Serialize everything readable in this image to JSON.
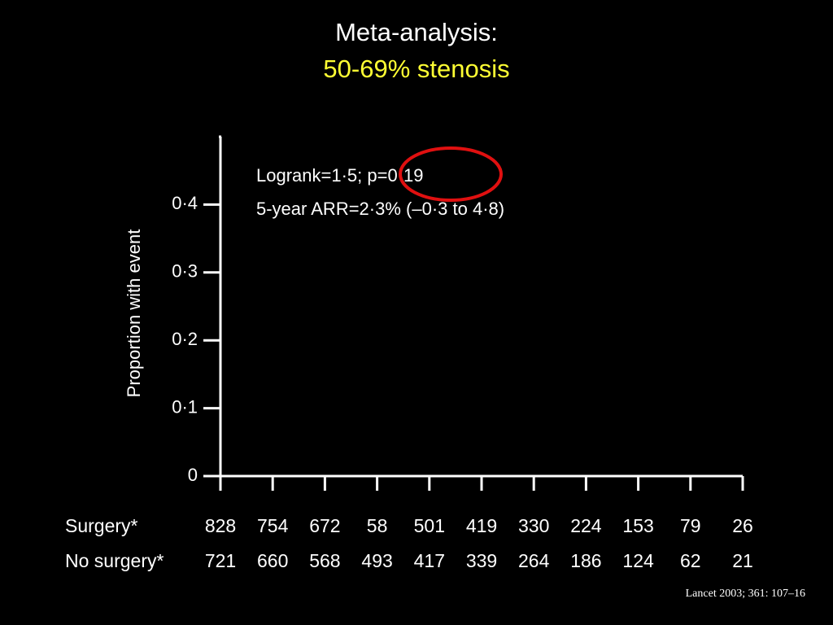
{
  "chart_data": {
    "type": "line",
    "title": "Meta-analysis:",
    "subtitle": "50-69% stenosis",
    "y_label": "Proportion with event",
    "annotations": [
      "Logrank=1·5; p=0·19",
      "5-year ARR=2·3% (–0·3 to 4·8)"
    ],
    "ylim": [
      0,
      0.5
    ],
    "yticks": [
      0,
      {
        "value": 0.1,
        "label": "0·1"
      },
      {
        "value": 0.2,
        "label": "0·2"
      },
      {
        "value": 0.3,
        "label": "0·3"
      },
      {
        "value": 0.4,
        "label": "0·4"
      }
    ],
    "xlim": [
      0,
      10
    ],
    "xticks": [
      0,
      1,
      2,
      3,
      4,
      5,
      6,
      7,
      8,
      9,
      10
    ],
    "at_risk": [
      {
        "name": "Surgery*",
        "values": [
          828,
          754,
          672,
          58,
          501,
          419,
          330,
          224,
          153,
          79,
          26
        ]
      },
      {
        "name": "No surgery*",
        "values": [
          721,
          660,
          568,
          493,
          417,
          339,
          264,
          186,
          124,
          62,
          21
        ]
      }
    ],
    "source": "Lancet 2003; 361: 107–16"
  }
}
